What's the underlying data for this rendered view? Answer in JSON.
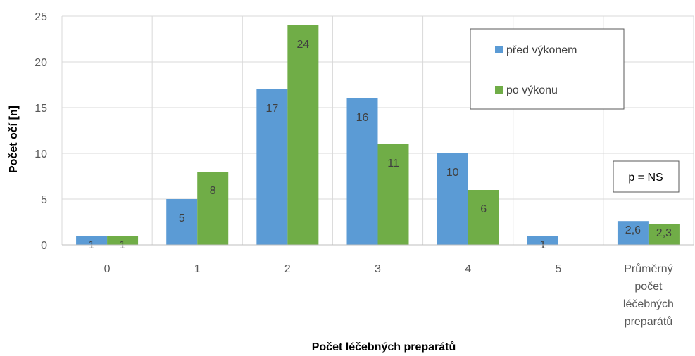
{
  "chart_data": {
    "type": "bar",
    "categories": [
      "0",
      "1",
      "2",
      "3",
      "4",
      "5",
      "Průměrný počet léčebných preparátů"
    ],
    "category_lines": [
      [
        "0"
      ],
      [
        "1"
      ],
      [
        "2"
      ],
      [
        "3"
      ],
      [
        "4"
      ],
      [
        "5"
      ],
      [
        "Průměrný",
        "počet",
        "léčebných",
        "preparátů"
      ]
    ],
    "series": [
      {
        "name": "před výkonem",
        "color": "#5B9BD5",
        "values": [
          1,
          5,
          17,
          16,
          10,
          1,
          2.6
        ],
        "labels": [
          "1",
          "5",
          "17",
          "16",
          "10",
          "1",
          "2,6"
        ]
      },
      {
        "name": "po výkonu",
        "color": "#70AD47",
        "values": [
          1,
          8,
          24,
          11,
          6,
          null,
          2.3
        ],
        "labels": [
          "1",
          "8",
          "24",
          "11",
          "6",
          "",
          "2,3"
        ]
      }
    ],
    "xlabel": "Počet léčebných preparátů",
    "ylabel": "Počet očí [n]",
    "ylim": [
      0,
      25
    ],
    "yticks": [
      0,
      5,
      10,
      15,
      20,
      25
    ],
    "grid": true,
    "legend_position": "top-right",
    "annotation": "p = NS"
  }
}
